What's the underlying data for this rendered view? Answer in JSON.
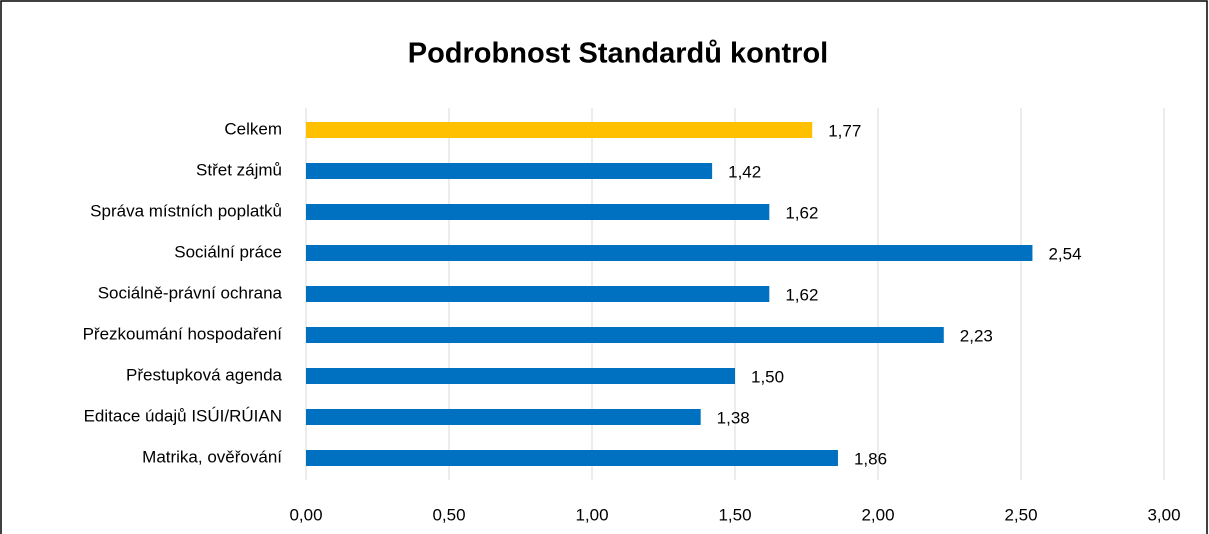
{
  "chart_data": {
    "type": "barh",
    "title": "Podrobnost Standardů kontrol",
    "categories": [
      "Celkem",
      "Střet zájmů",
      "Správa místních poplatků",
      "Sociální práce",
      "Sociálně-právní ochrana",
      "Přezkoumání hospodaření",
      "Přestupková agenda",
      "Editace údajů ISÚI/RÚIAN",
      "Matrika, ověřování"
    ],
    "values": [
      1.77,
      1.42,
      1.62,
      2.54,
      1.62,
      2.23,
      1.5,
      1.38,
      1.86
    ],
    "value_labels": [
      "1,77",
      "1,42",
      "1,62",
      "2,54",
      "1,62",
      "2,23",
      "1,50",
      "1,38",
      "1,86"
    ],
    "colors": [
      "#FFC000",
      "#0070C0",
      "#0070C0",
      "#0070C0",
      "#0070C0",
      "#0070C0",
      "#0070C0",
      "#0070C0",
      "#0070C0"
    ],
    "xlim": [
      0,
      3
    ],
    "xticks": [
      {
        "value": 0,
        "label": "0,00"
      },
      {
        "value": 0.5,
        "label": "0,50"
      },
      {
        "value": 1,
        "label": "1,00"
      },
      {
        "value": 1.5,
        "label": "1,50"
      },
      {
        "value": 2,
        "label": "2,00"
      },
      {
        "value": 2.5,
        "label": "2,50"
      },
      {
        "value": 3,
        "label": "3,00"
      }
    ],
    "grid": true
  }
}
